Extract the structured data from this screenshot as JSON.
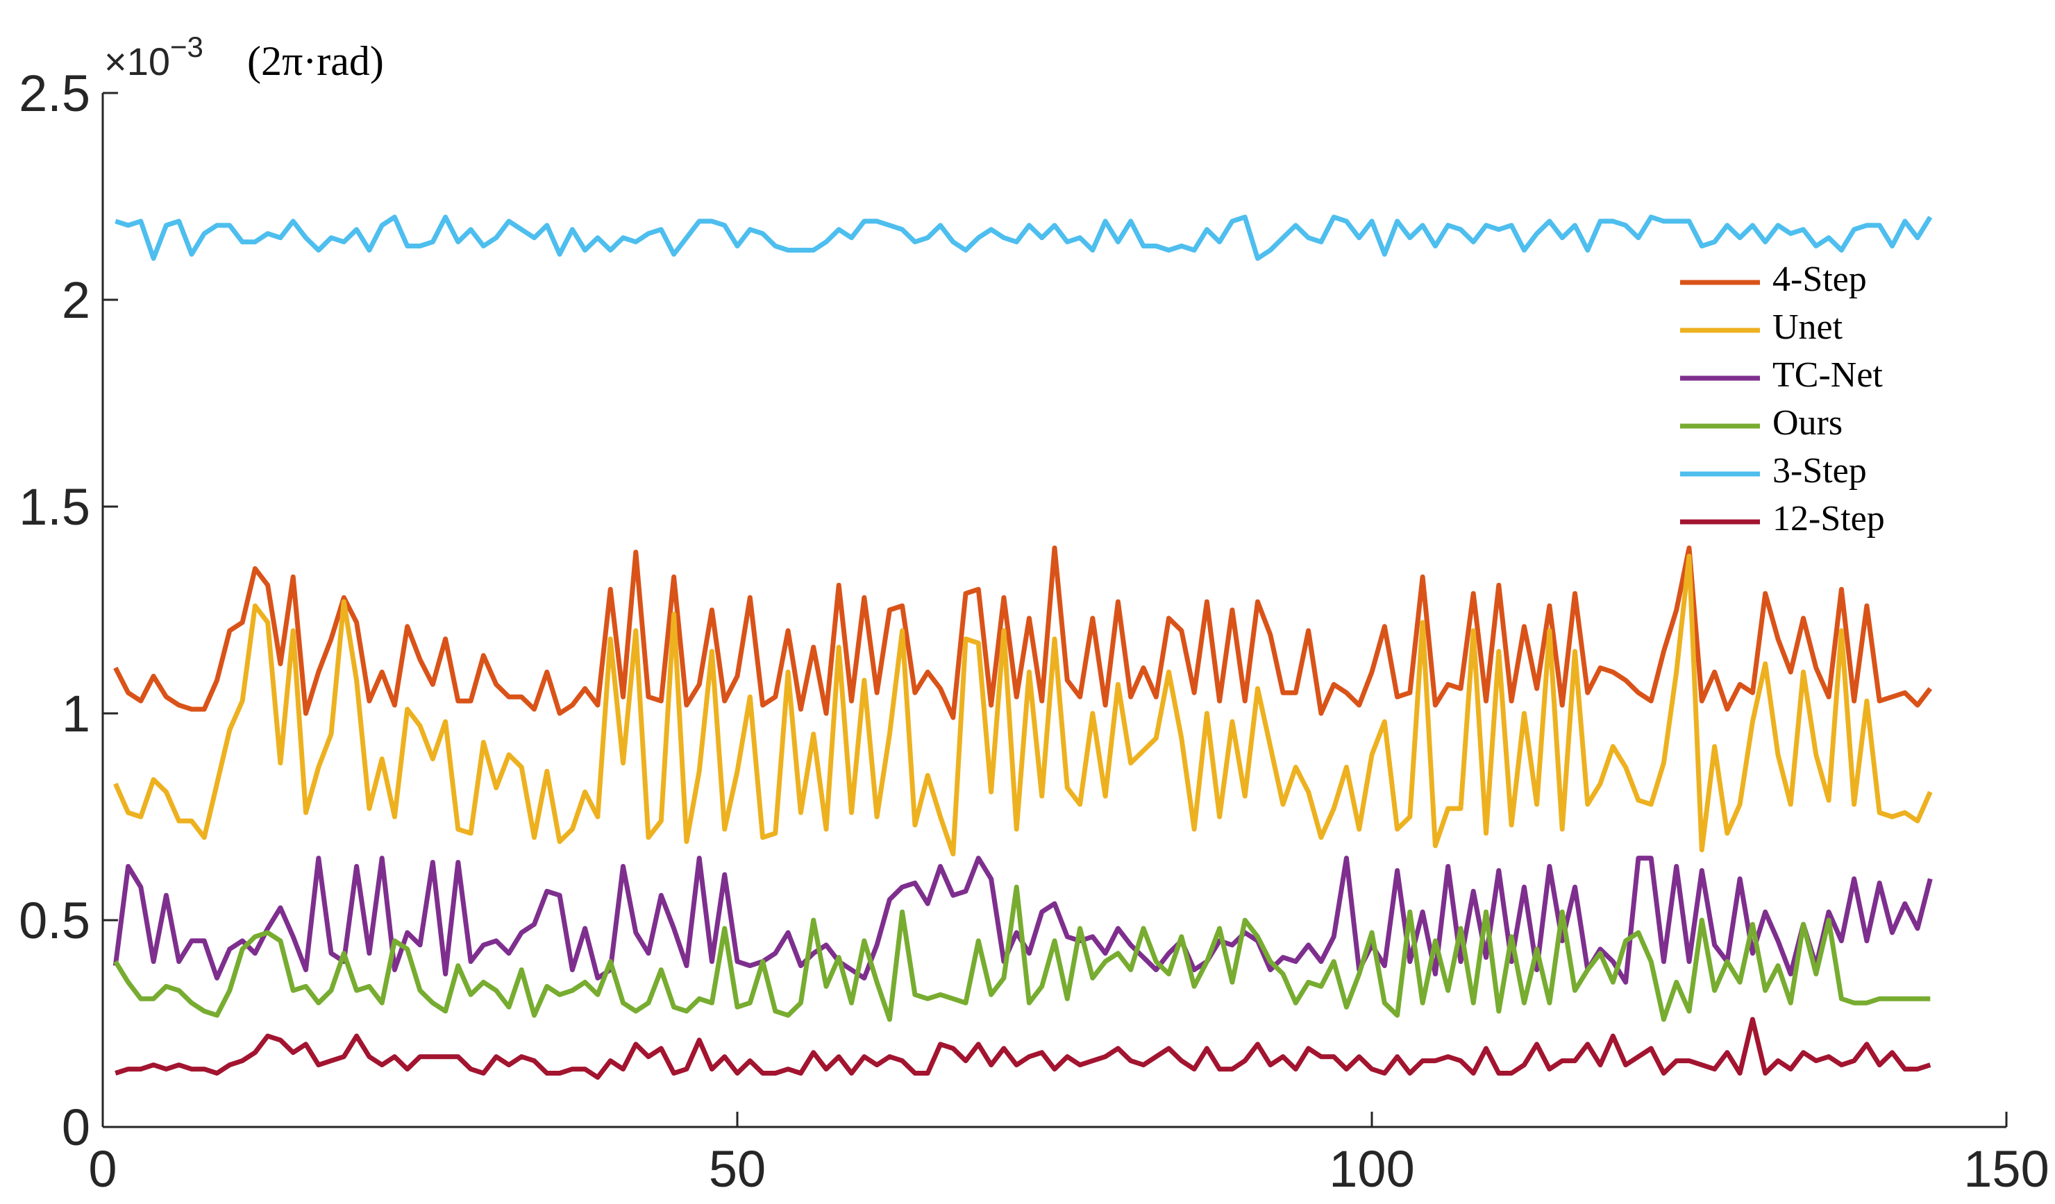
{
  "chart_data": {
    "type": "line",
    "axis_multiplier": "×10",
    "axis_exponent": "−3",
    "y_unit": "(2π·rad)",
    "xlim": [
      0,
      150
    ],
    "xticks": [
      0,
      50,
      100,
      150
    ],
    "ylim": [
      0,
      2.5
    ],
    "yticks": [
      0,
      0.5,
      1,
      1.5,
      2,
      2.5
    ],
    "grid": false,
    "legend_loc": "northeast",
    "x": [
      1,
      2,
      3,
      4,
      5,
      6,
      7,
      8,
      9,
      10,
      11,
      12,
      13,
      14,
      15,
      16,
      17,
      18,
      19,
      20,
      21,
      22,
      23,
      24,
      25,
      26,
      27,
      28,
      29,
      30,
      31,
      32,
      33,
      34,
      35,
      36,
      37,
      38,
      39,
      40,
      41,
      42,
      43,
      44,
      45,
      46,
      47,
      48,
      49,
      50,
      51,
      52,
      53,
      54,
      55,
      56,
      57,
      58,
      59,
      60,
      61,
      62,
      63,
      64,
      65,
      66,
      67,
      68,
      69,
      70,
      71,
      72,
      73,
      74,
      75,
      76,
      77,
      78,
      79,
      80,
      81,
      82,
      83,
      84,
      85,
      86,
      87,
      88,
      89,
      90,
      91,
      92,
      93,
      94,
      95,
      96,
      97,
      98,
      99,
      100,
      101,
      102,
      103,
      104,
      105,
      106,
      107,
      108,
      109,
      110,
      111,
      112,
      113,
      114,
      115,
      116,
      117,
      118,
      119,
      120,
      121,
      122,
      123,
      124,
      125,
      126,
      127,
      128,
      129,
      130,
      131,
      132,
      133,
      134,
      135,
      136,
      137,
      138,
      139,
      140,
      141,
      142,
      143,
      144
    ],
    "series": [
      {
        "name": "4-Step",
        "color": "#D95319",
        "values": [
          1.11,
          1.05,
          1.03,
          1.09,
          1.04,
          1.02,
          1.01,
          1.01,
          1.08,
          1.2,
          1.22,
          1.35,
          1.31,
          1.12,
          1.33,
          1.0,
          1.1,
          1.18,
          1.28,
          1.22,
          1.03,
          1.1,
          1.02,
          1.21,
          1.13,
          1.07,
          1.18,
          1.03,
          1.03,
          1.14,
          1.07,
          1.04,
          1.04,
          1.01,
          1.1,
          1.0,
          1.02,
          1.06,
          1.02,
          1.3,
          1.04,
          1.39,
          1.04,
          1.03,
          1.33,
          1.02,
          1.07,
          1.25,
          1.03,
          1.09,
          1.28,
          1.02,
          1.04,
          1.2,
          1.01,
          1.16,
          1.0,
          1.31,
          1.03,
          1.28,
          1.05,
          1.25,
          1.26,
          1.05,
          1.1,
          1.06,
          0.99,
          1.29,
          1.3,
          1.02,
          1.28,
          1.04,
          1.23,
          1.03,
          1.4,
          1.08,
          1.04,
          1.23,
          1.02,
          1.27,
          1.04,
          1.11,
          1.04,
          1.23,
          1.2,
          1.05,
          1.27,
          1.03,
          1.25,
          1.03,
          1.27,
          1.19,
          1.05,
          1.05,
          1.2,
          1.0,
          1.07,
          1.05,
          1.02,
          1.1,
          1.21,
          1.04,
          1.05,
          1.33,
          1.02,
          1.07,
          1.06,
          1.29,
          1.03,
          1.31,
          1.03,
          1.21,
          1.06,
          1.26,
          1.02,
          1.29,
          1.05,
          1.11,
          1.1,
          1.08,
          1.05,
          1.03,
          1.15,
          1.25,
          1.4,
          1.03,
          1.1,
          1.01,
          1.07,
          1.05,
          1.29,
          1.18,
          1.1,
          1.23,
          1.11,
          1.04,
          1.3,
          1.03,
          1.26,
          1.03,
          1.04,
          1.05,
          1.02,
          1.06
        ]
      },
      {
        "name": "Unet",
        "color": "#EDB120",
        "values": [
          0.83,
          0.76,
          0.75,
          0.84,
          0.81,
          0.74,
          0.74,
          0.7,
          0.83,
          0.96,
          1.03,
          1.26,
          1.22,
          0.88,
          1.2,
          0.76,
          0.87,
          0.95,
          1.27,
          1.08,
          0.77,
          0.89,
          0.75,
          1.01,
          0.97,
          0.89,
          0.98,
          0.72,
          0.71,
          0.93,
          0.82,
          0.9,
          0.87,
          0.7,
          0.86,
          0.69,
          0.72,
          0.81,
          0.75,
          1.18,
          0.88,
          1.2,
          0.7,
          0.74,
          1.24,
          0.69,
          0.86,
          1.15,
          0.72,
          0.86,
          1.04,
          0.7,
          0.71,
          1.1,
          0.76,
          0.95,
          0.72,
          1.16,
          0.76,
          1.08,
          0.75,
          0.95,
          1.2,
          0.73,
          0.85,
          0.75,
          0.66,
          1.18,
          1.17,
          0.81,
          1.2,
          0.72,
          1.1,
          0.8,
          1.18,
          0.82,
          0.78,
          1.0,
          0.8,
          1.07,
          0.88,
          0.91,
          0.94,
          1.1,
          0.94,
          0.72,
          1.0,
          0.75,
          0.98,
          0.8,
          1.06,
          0.92,
          0.78,
          0.87,
          0.81,
          0.7,
          0.77,
          0.87,
          0.72,
          0.9,
          0.98,
          0.72,
          0.75,
          1.22,
          0.68,
          0.77,
          0.77,
          1.2,
          0.71,
          1.15,
          0.73,
          1.0,
          0.78,
          1.2,
          0.72,
          1.15,
          0.78,
          0.83,
          0.92,
          0.87,
          0.79,
          0.78,
          0.88,
          1.1,
          1.38,
          0.67,
          0.92,
          0.71,
          0.78,
          0.98,
          1.12,
          0.9,
          0.78,
          1.1,
          0.9,
          0.79,
          1.2,
          0.78,
          1.03,
          0.76,
          0.75,
          0.76,
          0.74,
          0.81
        ]
      },
      {
        "name": "TC-Net",
        "color": "#7E2F8E",
        "values": [
          0.39,
          0.63,
          0.58,
          0.4,
          0.56,
          0.4,
          0.45,
          0.45,
          0.36,
          0.43,
          0.45,
          0.42,
          0.48,
          0.53,
          0.46,
          0.38,
          0.65,
          0.42,
          0.4,
          0.63,
          0.42,
          0.65,
          0.38,
          0.47,
          0.44,
          0.64,
          0.37,
          0.64,
          0.4,
          0.44,
          0.45,
          0.42,
          0.47,
          0.49,
          0.57,
          0.56,
          0.38,
          0.48,
          0.36,
          0.38,
          0.63,
          0.47,
          0.42,
          0.56,
          0.48,
          0.39,
          0.65,
          0.4,
          0.61,
          0.4,
          0.39,
          0.4,
          0.42,
          0.47,
          0.39,
          0.42,
          0.44,
          0.4,
          0.38,
          0.36,
          0.44,
          0.55,
          0.58,
          0.59,
          0.54,
          0.63,
          0.56,
          0.57,
          0.65,
          0.6,
          0.4,
          0.47,
          0.42,
          0.52,
          0.54,
          0.46,
          0.45,
          0.46,
          0.42,
          0.48,
          0.44,
          0.41,
          0.38,
          0.42,
          0.45,
          0.38,
          0.4,
          0.45,
          0.44,
          0.47,
          0.45,
          0.38,
          0.41,
          0.4,
          0.44,
          0.4,
          0.46,
          0.65,
          0.38,
          0.44,
          0.39,
          0.62,
          0.4,
          0.52,
          0.37,
          0.63,
          0.4,
          0.57,
          0.41,
          0.62,
          0.4,
          0.58,
          0.38,
          0.63,
          0.45,
          0.58,
          0.38,
          0.43,
          0.4,
          0.35,
          0.65,
          0.65,
          0.4,
          0.63,
          0.4,
          0.62,
          0.44,
          0.4,
          0.6,
          0.42,
          0.52,
          0.45,
          0.37,
          0.49,
          0.39,
          0.52,
          0.45,
          0.6,
          0.45,
          0.59,
          0.47,
          0.54,
          0.48,
          0.6
        ]
      },
      {
        "name": "Ours",
        "color": "#77AC30",
        "values": [
          0.4,
          0.35,
          0.31,
          0.31,
          0.34,
          0.33,
          0.3,
          0.28,
          0.27,
          0.33,
          0.43,
          0.46,
          0.47,
          0.45,
          0.33,
          0.34,
          0.3,
          0.33,
          0.42,
          0.33,
          0.34,
          0.3,
          0.45,
          0.43,
          0.33,
          0.3,
          0.28,
          0.39,
          0.32,
          0.35,
          0.33,
          0.29,
          0.38,
          0.27,
          0.34,
          0.32,
          0.33,
          0.35,
          0.32,
          0.4,
          0.3,
          0.28,
          0.3,
          0.38,
          0.29,
          0.28,
          0.31,
          0.3,
          0.48,
          0.29,
          0.3,
          0.4,
          0.28,
          0.27,
          0.3,
          0.5,
          0.34,
          0.41,
          0.3,
          0.45,
          0.35,
          0.26,
          0.52,
          0.32,
          0.31,
          0.32,
          0.31,
          0.3,
          0.45,
          0.32,
          0.36,
          0.58,
          0.3,
          0.34,
          0.45,
          0.31,
          0.48,
          0.36,
          0.4,
          0.42,
          0.38,
          0.48,
          0.4,
          0.37,
          0.46,
          0.34,
          0.4,
          0.48,
          0.35,
          0.5,
          0.46,
          0.4,
          0.37,
          0.3,
          0.35,
          0.34,
          0.4,
          0.29,
          0.37,
          0.47,
          0.3,
          0.27,
          0.52,
          0.3,
          0.45,
          0.33,
          0.48,
          0.3,
          0.52,
          0.28,
          0.46,
          0.3,
          0.43,
          0.3,
          0.52,
          0.33,
          0.38,
          0.42,
          0.35,
          0.45,
          0.47,
          0.4,
          0.26,
          0.35,
          0.28,
          0.5,
          0.33,
          0.4,
          0.35,
          0.49,
          0.33,
          0.39,
          0.3,
          0.49,
          0.37,
          0.5,
          0.31,
          0.3,
          0.3,
          0.31,
          0.31,
          0.31,
          0.31,
          0.31
        ]
      },
      {
        "name": "3-Step",
        "color": "#4DBEEE",
        "values": [
          2.19,
          2.18,
          2.19,
          2.1,
          2.18,
          2.19,
          2.11,
          2.16,
          2.18,
          2.18,
          2.14,
          2.14,
          2.16,
          2.15,
          2.19,
          2.15,
          2.12,
          2.15,
          2.14,
          2.17,
          2.12,
          2.18,
          2.2,
          2.13,
          2.13,
          2.14,
          2.2,
          2.14,
          2.17,
          2.13,
          2.15,
          2.19,
          2.17,
          2.15,
          2.18,
          2.11,
          2.17,
          2.12,
          2.15,
          2.12,
          2.15,
          2.14,
          2.16,
          2.17,
          2.11,
          2.15,
          2.19,
          2.19,
          2.18,
          2.13,
          2.17,
          2.16,
          2.13,
          2.12,
          2.12,
          2.12,
          2.14,
          2.17,
          2.15,
          2.19,
          2.19,
          2.18,
          2.17,
          2.14,
          2.15,
          2.18,
          2.14,
          2.12,
          2.15,
          2.17,
          2.15,
          2.14,
          2.18,
          2.15,
          2.18,
          2.14,
          2.15,
          2.12,
          2.19,
          2.14,
          2.19,
          2.13,
          2.13,
          2.12,
          2.13,
          2.12,
          2.17,
          2.14,
          2.19,
          2.2,
          2.1,
          2.12,
          2.15,
          2.18,
          2.15,
          2.14,
          2.2,
          2.19,
          2.15,
          2.19,
          2.11,
          2.19,
          2.15,
          2.18,
          2.13,
          2.18,
          2.17,
          2.14,
          2.18,
          2.17,
          2.18,
          2.12,
          2.16,
          2.19,
          2.15,
          2.18,
          2.12,
          2.19,
          2.19,
          2.18,
          2.15,
          2.2,
          2.19,
          2.19,
          2.19,
          2.13,
          2.14,
          2.18,
          2.15,
          2.18,
          2.14,
          2.18,
          2.16,
          2.17,
          2.13,
          2.15,
          2.12,
          2.17,
          2.18,
          2.18,
          2.13,
          2.19,
          2.15,
          2.2
        ]
      },
      {
        "name": "12-Step",
        "color": "#A2142F",
        "values": [
          0.13,
          0.14,
          0.14,
          0.15,
          0.14,
          0.15,
          0.14,
          0.14,
          0.13,
          0.15,
          0.16,
          0.18,
          0.22,
          0.21,
          0.18,
          0.2,
          0.15,
          0.16,
          0.17,
          0.22,
          0.17,
          0.15,
          0.17,
          0.14,
          0.17,
          0.17,
          0.17,
          0.17,
          0.14,
          0.13,
          0.17,
          0.15,
          0.17,
          0.16,
          0.13,
          0.13,
          0.14,
          0.14,
          0.12,
          0.16,
          0.14,
          0.2,
          0.17,
          0.19,
          0.13,
          0.14,
          0.21,
          0.14,
          0.17,
          0.13,
          0.16,
          0.13,
          0.13,
          0.14,
          0.13,
          0.18,
          0.14,
          0.17,
          0.13,
          0.17,
          0.15,
          0.17,
          0.16,
          0.13,
          0.13,
          0.2,
          0.19,
          0.16,
          0.2,
          0.15,
          0.19,
          0.15,
          0.17,
          0.18,
          0.14,
          0.17,
          0.15,
          0.16,
          0.17,
          0.19,
          0.16,
          0.15,
          0.17,
          0.19,
          0.16,
          0.14,
          0.19,
          0.14,
          0.14,
          0.16,
          0.2,
          0.15,
          0.17,
          0.14,
          0.19,
          0.17,
          0.17,
          0.14,
          0.17,
          0.14,
          0.13,
          0.17,
          0.13,
          0.16,
          0.16,
          0.17,
          0.16,
          0.13,
          0.19,
          0.13,
          0.13,
          0.15,
          0.2,
          0.14,
          0.16,
          0.16,
          0.2,
          0.15,
          0.22,
          0.15,
          0.17,
          0.19,
          0.13,
          0.16,
          0.16,
          0.15,
          0.14,
          0.18,
          0.13,
          0.26,
          0.13,
          0.16,
          0.14,
          0.18,
          0.16,
          0.17,
          0.15,
          0.16,
          0.2,
          0.15,
          0.18,
          0.14,
          0.14,
          0.15
        ]
      }
    ]
  }
}
